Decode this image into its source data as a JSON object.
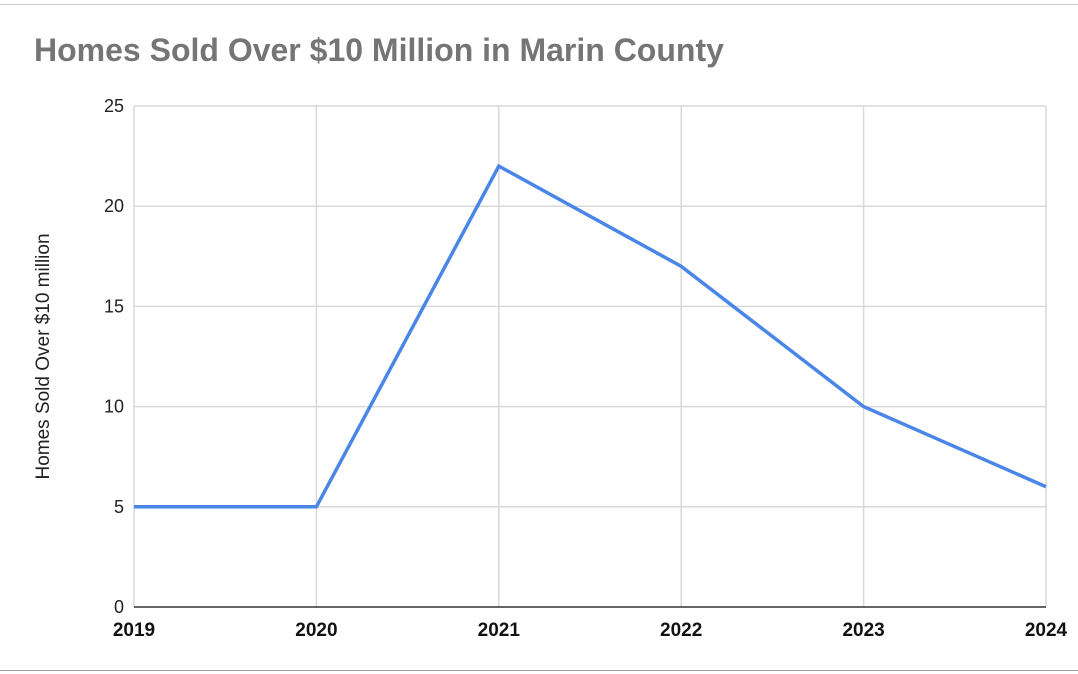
{
  "chart_data": {
    "type": "line",
    "title": "Homes Sold Over $10 Million in Marin County",
    "xlabel": "",
    "ylabel": "Homes Sold Over $10 million",
    "categories": [
      "2019",
      "2020",
      "2021",
      "2022",
      "2023",
      "2024"
    ],
    "series": [
      {
        "values": [
          5,
          5,
          22,
          17,
          10,
          6
        ]
      }
    ],
    "ylim": [
      0,
      25
    ],
    "yticks": [
      "0",
      "5",
      "10",
      "15",
      "20",
      "25"
    ],
    "grid": true,
    "legend": "none",
    "colors": {
      "line": "#4a86e8",
      "grid": "#d9d9d9",
      "axis": "#333333",
      "title": "#757575"
    }
  }
}
